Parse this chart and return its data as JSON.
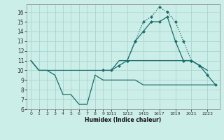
{
  "background_color": "#cceee8",
  "grid_color": "#aad4ce",
  "line_color": "#1a6b6b",
  "xlim": [
    -0.5,
    23.5
  ],
  "ylim": [
    6,
    16.8
  ],
  "yticks": [
    6,
    7,
    8,
    9,
    10,
    11,
    12,
    13,
    14,
    15,
    16
  ],
  "xlabel": "Humidex (Indice chaleur)",
  "custom_xticks": [
    0,
    1,
    2,
    3,
    4,
    5,
    6,
    7,
    8,
    9,
    10,
    12,
    14,
    16,
    18,
    20,
    22
  ],
  "custom_xlabels": [
    "0",
    "1",
    "2",
    "3",
    "4",
    "5",
    "6",
    "7",
    "8",
    "9",
    "1011",
    "1213",
    "1415",
    "1617",
    "1819",
    "2021",
    "2223"
  ],
  "line1_x": [
    0,
    1,
    2,
    3,
    4,
    5,
    6,
    7,
    8
  ],
  "line1_y": [
    11,
    10,
    10,
    9.5,
    7.5,
    7.5,
    6.5,
    6.5,
    9.5
  ],
  "line2_x": [
    8,
    9,
    10,
    11,
    12,
    13,
    14,
    15,
    16,
    17,
    18,
    19,
    20,
    21,
    22,
    23
  ],
  "line2_y": [
    9.5,
    9,
    9,
    9,
    9,
    9,
    8.5,
    8.5,
    8.5,
    8.5,
    8.5,
    8.5,
    8.5,
    8.5,
    8.5,
    8.5
  ],
  "line3_x": [
    0,
    1,
    2,
    3,
    4,
    5,
    6,
    7,
    8,
    9,
    10,
    11,
    12,
    13,
    14,
    15,
    16,
    17,
    18,
    19,
    20,
    21,
    22
  ],
  "line3_y": [
    11,
    10,
    10,
    10,
    10,
    10,
    10,
    10,
    10,
    10,
    10,
    11,
    11,
    11,
    11,
    11,
    11,
    11,
    11,
    11,
    11,
    10.5,
    10
  ],
  "line4_x": [
    12,
    13,
    14,
    15,
    16,
    17,
    18,
    19,
    20,
    21
  ],
  "line4_y": [
    11,
    13,
    15,
    15.5,
    16.5,
    16,
    15,
    13,
    11,
    10.5
  ],
  "line5_x": [
    9,
    10,
    11,
    12,
    13,
    14,
    15,
    16,
    17,
    18,
    19,
    20,
    21,
    22,
    23
  ],
  "line5_y": [
    10,
    10,
    10.5,
    11,
    13,
    14,
    15,
    15,
    15.5,
    13,
    11,
    11,
    10.5,
    9.5,
    8.5
  ]
}
